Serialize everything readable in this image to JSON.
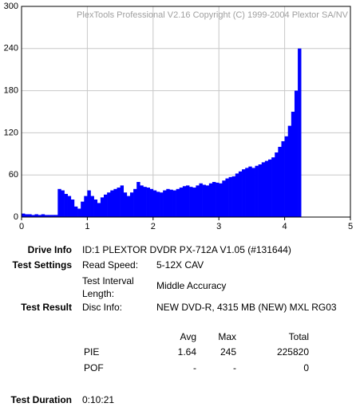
{
  "chart_data": {
    "type": "bar",
    "watermark": "PlexTools Professional V2.16 Copyright (C) 1999-2004 Plextor SA/NV",
    "x": [
      0,
      0.05,
      0.1,
      0.15,
      0.2,
      0.25,
      0.3,
      0.35,
      0.4,
      0.45,
      0.5,
      0.55,
      0.6,
      0.65,
      0.7,
      0.75,
      0.8,
      0.85,
      0.9,
      0.95,
      1.0,
      1.05,
      1.1,
      1.15,
      1.2,
      1.25,
      1.3,
      1.35,
      1.4,
      1.45,
      1.5,
      1.55,
      1.6,
      1.65,
      1.7,
      1.75,
      1.8,
      1.85,
      1.9,
      1.95,
      2.0,
      2.05,
      2.1,
      2.15,
      2.2,
      2.25,
      2.3,
      2.35,
      2.4,
      2.45,
      2.5,
      2.55,
      2.6,
      2.65,
      2.7,
      2.75,
      2.8,
      2.85,
      2.9,
      2.95,
      3.0,
      3.05,
      3.1,
      3.15,
      3.2,
      3.25,
      3.3,
      3.35,
      3.4,
      3.45,
      3.5,
      3.55,
      3.6,
      3.65,
      3.7,
      3.75,
      3.8,
      3.85,
      3.9,
      3.95,
      4.0,
      4.05,
      4.1,
      4.15,
      4.2
    ],
    "values": [
      5,
      4,
      4,
      3,
      4,
      3,
      4,
      3,
      3,
      3,
      3,
      40,
      38,
      33,
      30,
      25,
      15,
      12,
      22,
      30,
      38,
      30,
      25,
      20,
      28,
      32,
      35,
      38,
      40,
      42,
      45,
      35,
      30,
      35,
      40,
      50,
      45,
      43,
      42,
      40,
      38,
      36,
      35,
      38,
      40,
      39,
      38,
      40,
      42,
      44,
      45,
      43,
      42,
      45,
      48,
      46,
      45,
      48,
      50,
      49,
      48,
      52,
      55,
      57,
      58,
      62,
      65,
      68,
      70,
      72,
      70,
      73,
      75,
      78,
      80,
      82,
      85,
      92,
      100,
      108,
      115,
      130,
      150,
      180,
      240
    ],
    "color": "#0000ff",
    "xlim": [
      0,
      5
    ],
    "xticks": [
      0,
      1,
      2,
      3,
      4,
      5
    ],
    "ylim": [
      0,
      300
    ],
    "yticks": [
      0,
      60,
      120,
      180,
      240,
      300
    ],
    "grid": true
  },
  "info": {
    "drive_info": {
      "label": "Drive Info",
      "value": "ID:1 PLEXTOR DVDR PX-712A V1.05 (#131644)"
    },
    "test_settings": {
      "label": "Test Settings",
      "read_speed_label": "Read Speed:",
      "read_speed": "5-12X CAV",
      "interval_label": "Test Interval Length:",
      "interval": "Middle Accuracy"
    },
    "test_result": {
      "label": "Test Result",
      "disc_info_label": "Disc Info:",
      "disc_info": "NEW DVD-R, 4315 MB (NEW) MXL RG03"
    },
    "table": {
      "header": [
        "Avg",
        "Max",
        "Total"
      ],
      "rows": [
        [
          "PIE",
          "1.64",
          "245",
          "225820"
        ],
        [
          "POF",
          "-",
          "-",
          "0"
        ]
      ]
    },
    "test_duration": {
      "label": "Test Duration",
      "value": "0:10:21"
    }
  }
}
